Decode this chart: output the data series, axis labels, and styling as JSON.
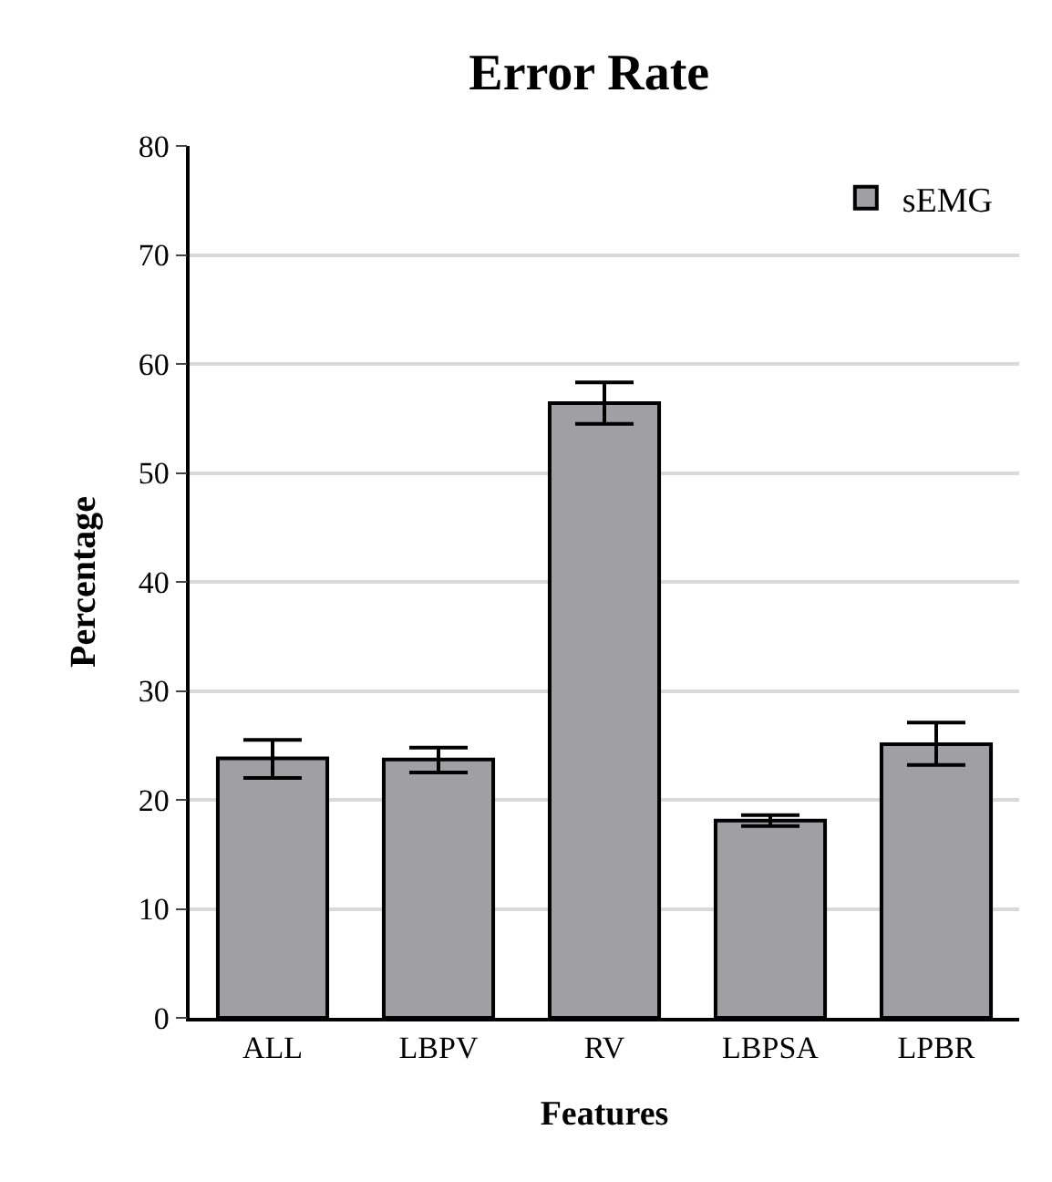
{
  "chart_data": {
    "type": "bar",
    "title": "Error Rate",
    "xlabel": "Features",
    "ylabel": "Percentage",
    "categories": [
      "ALL",
      "LBPV",
      "RV",
      "LBPSA",
      "LPBR"
    ],
    "series": [
      {
        "name": "sEMG",
        "color": "#a0a0a4",
        "values": [
          23.8,
          23.7,
          56.4,
          18.1,
          25.1
        ],
        "errors": [
          [
            22.0,
            25.5
          ],
          [
            22.5,
            24.8
          ],
          [
            54.5,
            58.3
          ],
          [
            17.6,
            18.6
          ],
          [
            23.2,
            27.1
          ]
        ]
      }
    ],
    "ylim": [
      0,
      80
    ],
    "yticks": [
      0,
      10,
      20,
      30,
      40,
      50,
      60,
      70,
      80
    ],
    "grid": "y",
    "legend": "top right"
  }
}
